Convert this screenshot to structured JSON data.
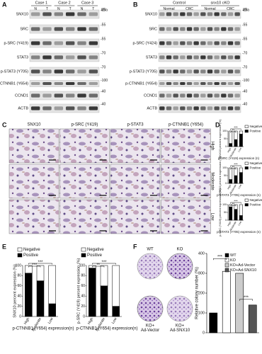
{
  "panel_a": {
    "label": "A",
    "groups": [
      "Case 1",
      "Case 2",
      "Case 3"
    ],
    "lanes": [
      "N",
      "T",
      "N",
      "T",
      "N",
      "T"
    ],
    "unit": "kDa",
    "rows": [
      {
        "name": "SNX10",
        "marker": "-25"
      },
      {
        "name": "SRC",
        "marker": "-55"
      },
      {
        "name": "p-SRC (Y419)",
        "marker": "-55"
      },
      {
        "name": "STAT3",
        "marker": "-70"
      },
      {
        "name": "p-STAT3 (Y705)",
        "marker": "-70"
      },
      {
        "name": "p-CTNNB1 (Y654)",
        "marker": "-100"
      },
      {
        "name": "CCND1",
        "marker": "-40"
      },
      {
        "name": "ACTB",
        "marker": "-40"
      }
    ]
  },
  "panel_b": {
    "label": "B",
    "groups": [
      "Control",
      "snx10 cKO"
    ],
    "lanes": [
      "Normal",
      "CRC",
      "Normal",
      "CRC"
    ],
    "unit": "kDa",
    "rows": [
      {
        "name": "SNX10",
        "marker": "-25"
      },
      {
        "name": "SRC",
        "marker": "-55"
      },
      {
        "name": "p-SRC (Y424)",
        "marker": "-55"
      },
      {
        "name": "STAT3",
        "marker": "-70"
      },
      {
        "name": "p-STAT3 (Y705)",
        "marker": "-70"
      },
      {
        "name": "p-CTNNB1 (Y654)",
        "marker": "-100"
      },
      {
        "name": "CCND1",
        "marker": "-40"
      },
      {
        "name": "ACTB",
        "marker": "-40"
      }
    ]
  },
  "panel_c": {
    "label": "C",
    "columns": [
      "SNX10",
      "p-SRC (Y419)",
      "p-STAT3",
      "p-CTNNB1 (Y654)"
    ],
    "rows": [
      "High",
      "Moderate",
      "Low"
    ]
  },
  "panel_d": {
    "label": "D",
    "charts": [
      {
        "ylabel": "SNX10 percent expression (%)",
        "xlabel": "p-SRC (Y419) expression (n)",
        "categories": [
          "High",
          "Moderate",
          "Low"
        ],
        "ylim": [
          0,
          100
        ],
        "yticks": [
          0,
          50,
          100
        ],
        "annotations": [
          "***",
          "**"
        ],
        "series": [
          {
            "name": "Negative",
            "color": "#ffffff",
            "values": [
              80,
              55,
              20
            ]
          },
          {
            "name": "Positive",
            "color": "#000000",
            "values": [
              20,
              45,
              80
            ]
          }
        ]
      },
      {
        "ylabel": "SNX10 percent expression (%)",
        "xlabel": "p-STAT3 (Y705) expression (n)",
        "categories": [
          "High",
          "Moderate",
          "Low"
        ],
        "ylim": [
          0,
          100
        ],
        "yticks": [
          0,
          50,
          100
        ],
        "annotations": [
          "***",
          "**"
        ],
        "series": [
          {
            "name": "Negative",
            "color": "#ffffff",
            "values": [
              75,
              50,
              30
            ]
          },
          {
            "name": "Positive",
            "color": "#000000",
            "values": [
              25,
              50,
              70
            ]
          }
        ]
      },
      {
        "ylabel": "p-SRC (Y419) percent expression (%)",
        "xlabel": "p-STAT3 (Y705) expression (n)",
        "categories": [
          "High",
          "Moderate",
          "Low"
        ],
        "ylim": [
          0,
          100
        ],
        "yticks": [
          0,
          50,
          100
        ],
        "annotations": [
          "***",
          "**"
        ],
        "series": [
          {
            "name": "Negative",
            "color": "#ffffff",
            "values": [
              15,
              30,
              70
            ]
          },
          {
            "name": "Positive",
            "color": "#000000",
            "values": [
              85,
              70,
              30
            ]
          }
        ]
      }
    ]
  },
  "panel_e": {
    "label": "E",
    "charts": [
      {
        "ylabel": "SNX10 percent expression (%)",
        "xlabel": "p-CTNNB1 (Y654) expression(n)",
        "categories": [
          "High",
          "Moderate",
          "Low"
        ],
        "ylim": [
          0,
          100
        ],
        "yticks": [
          0,
          20,
          40,
          60,
          80,
          100
        ],
        "annotations": [
          "***",
          "***"
        ],
        "series": [
          {
            "name": "Negative",
            "color": "#ffffff",
            "values": [
              15,
              30,
              75
            ]
          },
          {
            "name": "Positive",
            "color": "#000000",
            "values": [
              85,
              70,
              25
            ]
          }
        ]
      },
      {
        "ylabel": "p-SRC (Y419) percent expression (%)",
        "xlabel": "p-CTNNB1 (Y654) expression(n)",
        "categories": [
          "High",
          "Moderate",
          "Low"
        ],
        "ylim": [
          0,
          100
        ],
        "yticks": [
          0,
          20,
          40,
          60,
          80,
          100
        ],
        "annotations": [
          "***",
          "**"
        ],
        "series": [
          {
            "name": "Negative",
            "color": "#ffffff",
            "values": [
              5,
              40,
              80
            ]
          },
          {
            "name": "Positive",
            "color": "#000000",
            "values": [
              95,
              60,
              20
            ]
          }
        ]
      }
    ]
  },
  "panel_f": {
    "label": "F",
    "wells": [
      [
        "WT"
      ],
      [
        "KO"
      ],
      [
        "KO+",
        "Ad-Vector"
      ],
      [
        "KO+",
        "Ad-SNX10"
      ]
    ],
    "chart": {
      "ylabel": "Relative colony number (%)",
      "categories": [
        "WT",
        "KO",
        "KO+Ad-Vector",
        "KO+Ad-SNX10"
      ],
      "colors": [
        "#000000",
        "#ffffff",
        "#cccccc",
        "#555555"
      ],
      "values": [
        100,
        310,
        300,
        140
      ],
      "ylim": [
        0,
        400
      ],
      "yticks": [
        0,
        100,
        200,
        300,
        400
      ],
      "annotations": [
        "***",
        "***"
      ]
    }
  }
}
